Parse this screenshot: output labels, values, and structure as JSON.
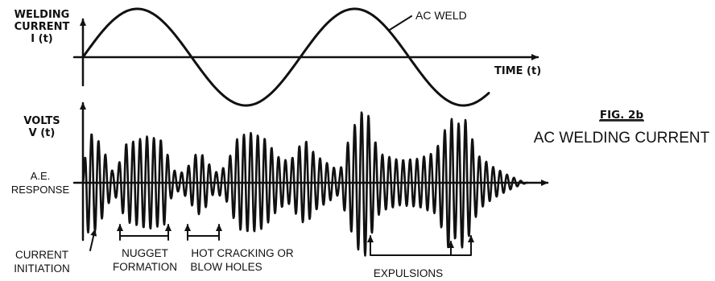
{
  "top_panel": {
    "y_label_line1": "WELDING",
    "y_label_line2": "CURRENT",
    "y_label_line3": "I (t)",
    "x_label": "TIME (t)",
    "curve_label": "AC WELD"
  },
  "bottom_panel": {
    "y_label_line1": "VOLTS",
    "y_label_line2": "V (t)",
    "baseline_label_line1": "A.E.",
    "baseline_label_line2": "RESPONSE"
  },
  "annotations": {
    "current_initiation_line1": "CURRENT",
    "current_initiation_line2": "INITIATION",
    "nugget_line1": "NUGGET",
    "nugget_line2": "FORMATION",
    "hot_cracking_line1": "HOT CRACKING OR",
    "hot_cracking_line2": "BLOW HOLES",
    "expulsions": "EXPULSIONS"
  },
  "caption": {
    "fig_number": "FIG. 2b",
    "title": "AC WELDING CURRENT"
  },
  "colors": {
    "ink": "#111111",
    "background": "#ffffff"
  }
}
